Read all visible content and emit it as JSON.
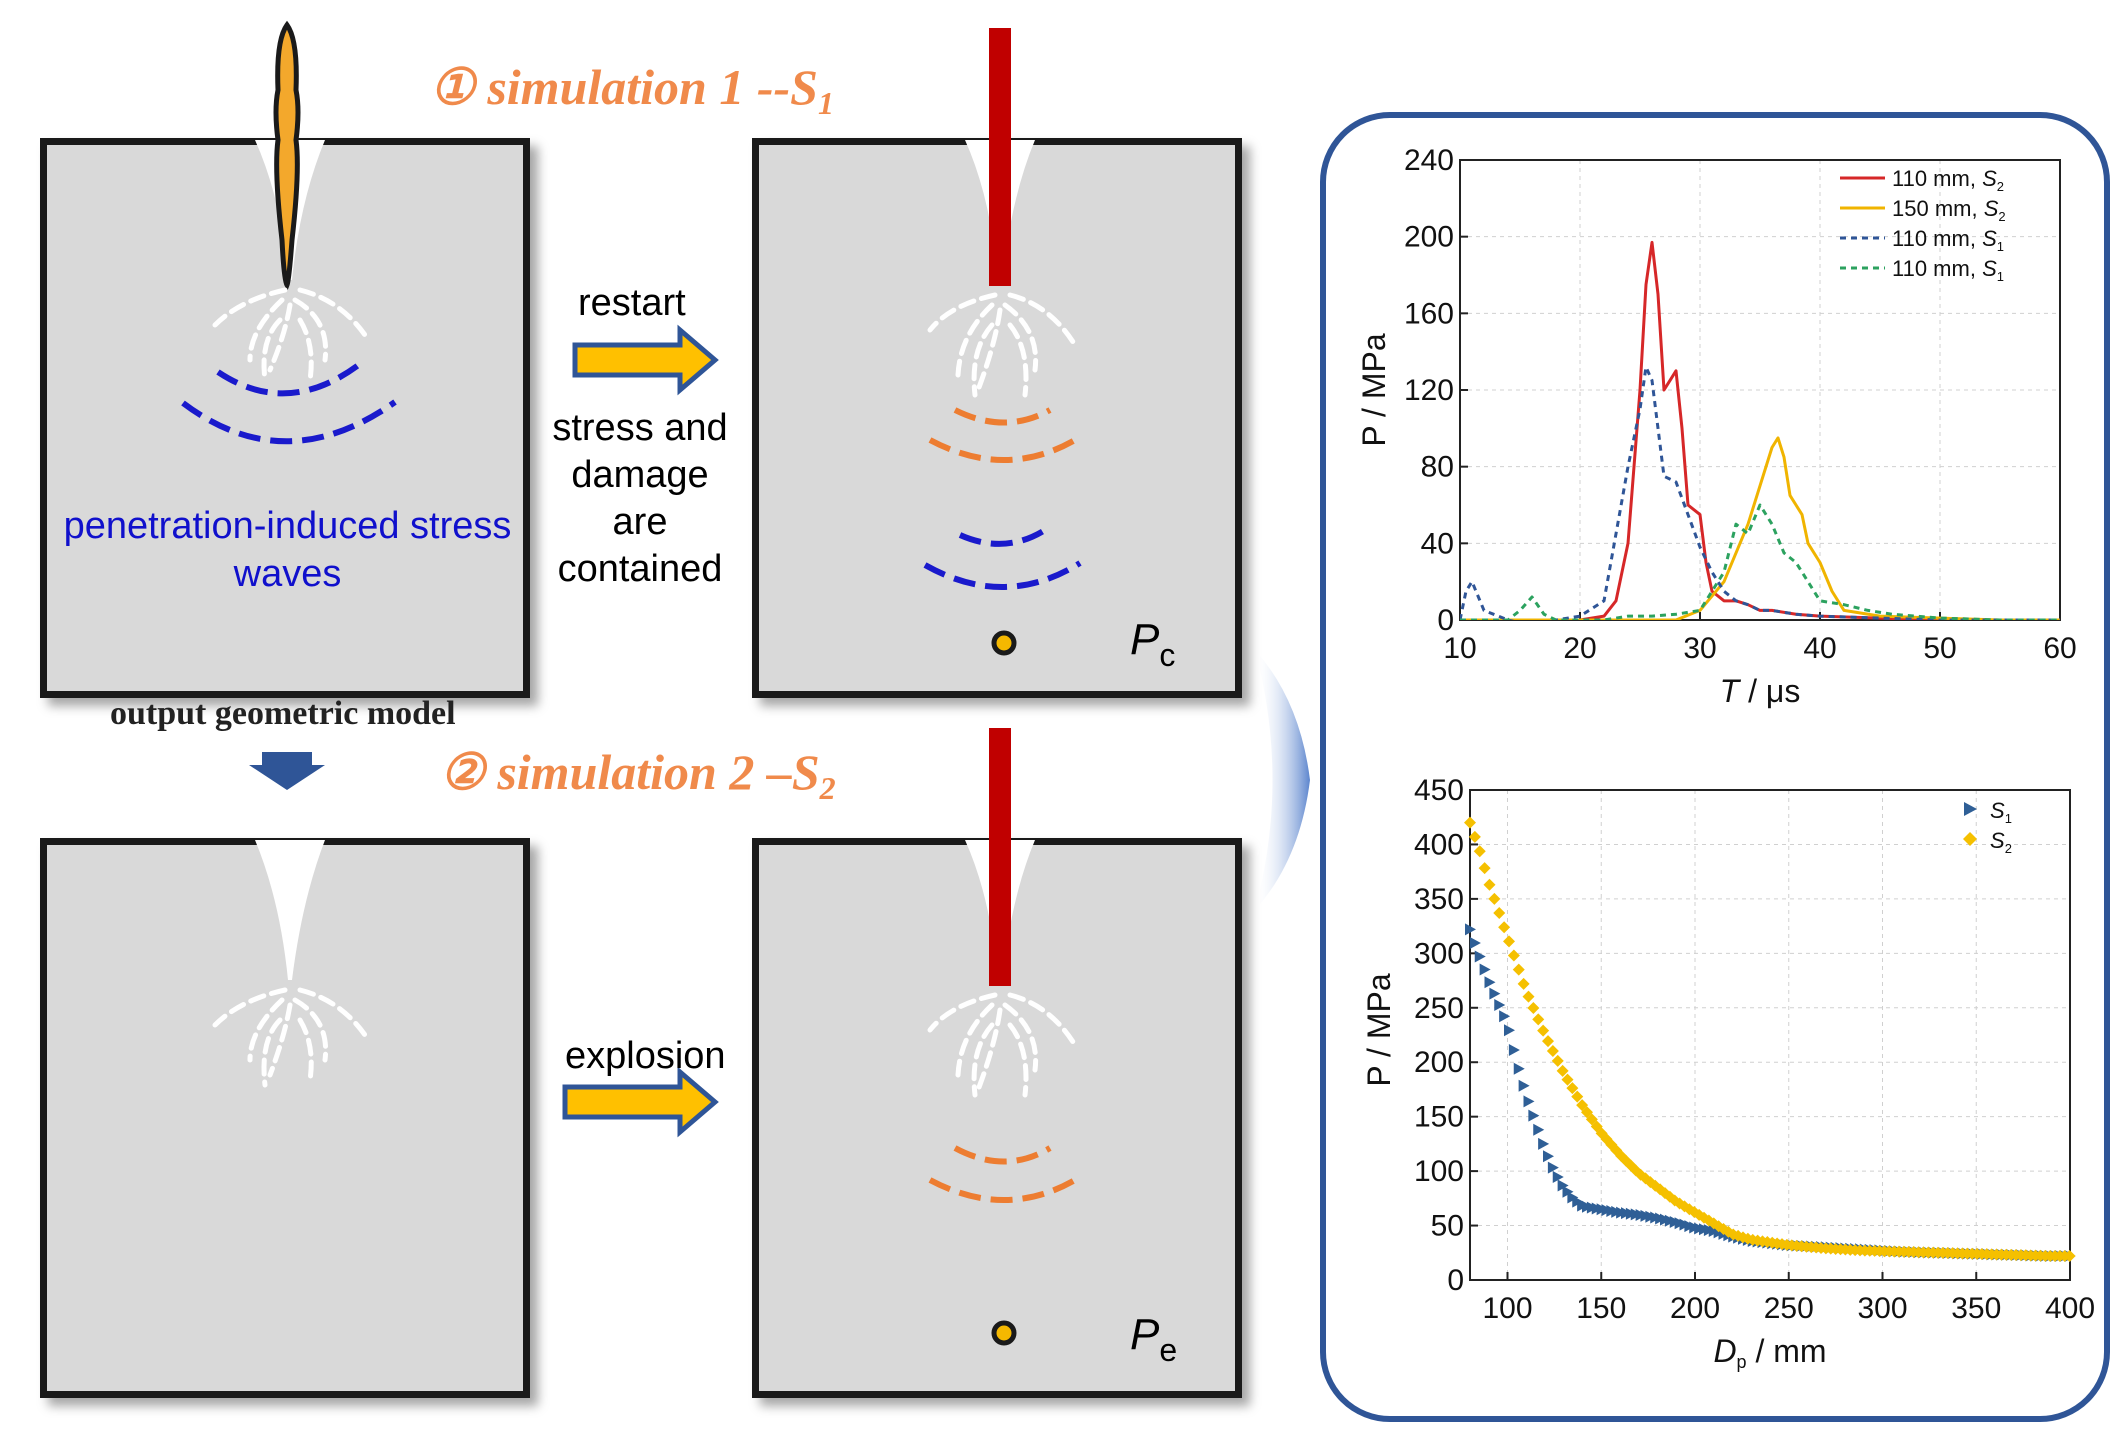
{
  "diagram": {
    "title1": {
      "prefix": "① simulation 1 --S",
      "sub": "1"
    },
    "title2": {
      "prefix": "② simulation 2 –S",
      "sub": "2"
    },
    "restart_label": "restart",
    "contained_label": "stress and\ndamage\nare contained",
    "explosion_label": "explosion",
    "waves_label": "penetration-induced stress\nwaves",
    "output_label": "output geometric model",
    "pc_label": {
      "main": "P",
      "sub": "c"
    },
    "pe_label": {
      "main": "P",
      "sub": "e"
    },
    "colors": {
      "box_fill": "#d9d9d9",
      "blue_wave": "#1a1acc",
      "orange_wave": "#ed7d31",
      "projectile_red": "#c00000",
      "arrow_yellow": "#ffc000",
      "arrow_blue": "#2f5597"
    }
  },
  "chart_data": [
    {
      "type": "line",
      "xlabel_main": "T",
      "xlabel_unit": " / μs",
      "ylabel": "P / MPa",
      "xlim": [
        10,
        60
      ],
      "ylim": [
        0,
        240
      ],
      "xticks": [
        "10",
        "20",
        "30",
        "40",
        "50",
        "60"
      ],
      "yticks": [
        "0",
        "40",
        "80",
        "120",
        "160",
        "200",
        "240"
      ],
      "grid": true,
      "legend_position": "top-right",
      "series": [
        {
          "name": "110 mm, S2",
          "color": "#d62728",
          "dash": "solid",
          "x": [
            10,
            20,
            22,
            23,
            24,
            25,
            25.5,
            26,
            26.5,
            27,
            27.5,
            28,
            28.5,
            29,
            30,
            30.5,
            31,
            32,
            33,
            34,
            35,
            36,
            38,
            40,
            45,
            50,
            55,
            60
          ],
          "y": [
            0,
            0,
            2,
            10,
            40,
            120,
            175,
            197,
            170,
            120,
            125,
            130,
            100,
            60,
            55,
            30,
            15,
            10,
            10,
            8,
            5,
            5,
            3,
            2,
            1,
            0,
            0,
            0
          ]
        },
        {
          "name": "150 mm, S2",
          "color": "#f0b400",
          "dash": "solid",
          "x": [
            10,
            28,
            30,
            32,
            33,
            34,
            35,
            36,
            36.5,
            37,
            37.5,
            38,
            38.5,
            39,
            40,
            41,
            42,
            45,
            50,
            55,
            60
          ],
          "y": [
            0,
            0,
            5,
            20,
            35,
            50,
            70,
            90,
            95,
            85,
            65,
            60,
            55,
            40,
            30,
            15,
            5,
            2,
            1,
            0,
            0
          ]
        },
        {
          "name": "110 mm, S1",
          "color": "#2f5597",
          "dash": "dotted",
          "x": [
            10,
            10.5,
            11,
            12,
            14,
            16,
            18,
            20,
            22,
            23,
            24,
            25,
            25.5,
            26,
            26.5,
            27,
            28,
            29,
            30,
            31,
            32,
            33,
            34,
            35,
            36,
            38,
            40,
            45,
            50,
            55,
            60
          ],
          "y": [
            0,
            15,
            20,
            5,
            0,
            -3,
            0,
            2,
            10,
            45,
            80,
            110,
            132,
            125,
            100,
            75,
            72,
            55,
            38,
            25,
            15,
            10,
            8,
            5,
            5,
            3,
            2,
            1,
            0,
            0,
            0
          ]
        },
        {
          "name": "110 mm, S1",
          "color": "#2ca25f",
          "dash": "dotted",
          "x": [
            10,
            14,
            15,
            16,
            17,
            18,
            22,
            24,
            26,
            28,
            30,
            32,
            33,
            34,
            35,
            36,
            37,
            38,
            39,
            40,
            42,
            44,
            46,
            50,
            55,
            60
          ],
          "y": [
            0,
            0,
            5,
            12,
            3,
            0,
            0,
            2,
            2,
            3,
            5,
            25,
            50,
            45,
            60,
            50,
            35,
            30,
            20,
            10,
            8,
            5,
            3,
            1,
            0,
            0
          ]
        }
      ],
      "legend": [
        {
          "label": "110 mm, ",
          "italic": "S",
          "sub": "2"
        },
        {
          "label": "150 mm, ",
          "italic": "S",
          "sub": "2"
        },
        {
          "label": "110 mm, ",
          "italic": "S",
          "sub": "1"
        },
        {
          "label": "110 mm, ",
          "italic": "S",
          "sub": "1"
        }
      ]
    },
    {
      "type": "scatter",
      "xlabel_main": "D",
      "xlabel_sub": "p",
      "xlabel_unit": " / mm",
      "ylabel": "P / MPa",
      "xlim": [
        80,
        400
      ],
      "ylim": [
        0,
        450
      ],
      "xticks": [
        "100",
        "150",
        "200",
        "250",
        "300",
        "350",
        "400"
      ],
      "yticks": [
        "0",
        "50",
        "100",
        "150",
        "200",
        "250",
        "300",
        "350",
        "400",
        "450"
      ],
      "grid": true,
      "legend_position": "top-right",
      "series": [
        {
          "name": "S1",
          "color": "#2f5f96",
          "marker": "triangle-right",
          "x": [
            80,
            85,
            90,
            95,
            100,
            105,
            110,
            115,
            120,
            125,
            130,
            135,
            140,
            150,
            160,
            170,
            180,
            190,
            200,
            210,
            220,
            230,
            250,
            270,
            290,
            310,
            330,
            350,
            370,
            390,
            400
          ],
          "y": [
            322,
            298,
            275,
            255,
            235,
            200,
            170,
            145,
            120,
            100,
            85,
            75,
            68,
            65,
            62,
            60,
            57,
            53,
            48,
            45,
            40,
            36,
            32,
            30,
            28,
            26,
            25,
            24,
            23,
            22,
            22
          ]
        },
        {
          "name": "S2",
          "color": "#f5c000",
          "marker": "diamond",
          "x": [
            80,
            85,
            90,
            95,
            100,
            110,
            120,
            130,
            140,
            150,
            160,
            170,
            180,
            190,
            200,
            210,
            220,
            230,
            250,
            270,
            290,
            310,
            330,
            350,
            370,
            390,
            400
          ],
          "y": [
            420,
            395,
            365,
            340,
            315,
            265,
            225,
            190,
            160,
            135,
            115,
            98,
            85,
            72,
            62,
            52,
            42,
            37,
            32,
            29,
            27,
            26,
            25,
            24,
            23,
            22,
            22
          ]
        }
      ],
      "legend": [
        {
          "italic": "S",
          "sub": "1"
        },
        {
          "italic": "S",
          "sub": "2"
        }
      ]
    }
  ]
}
